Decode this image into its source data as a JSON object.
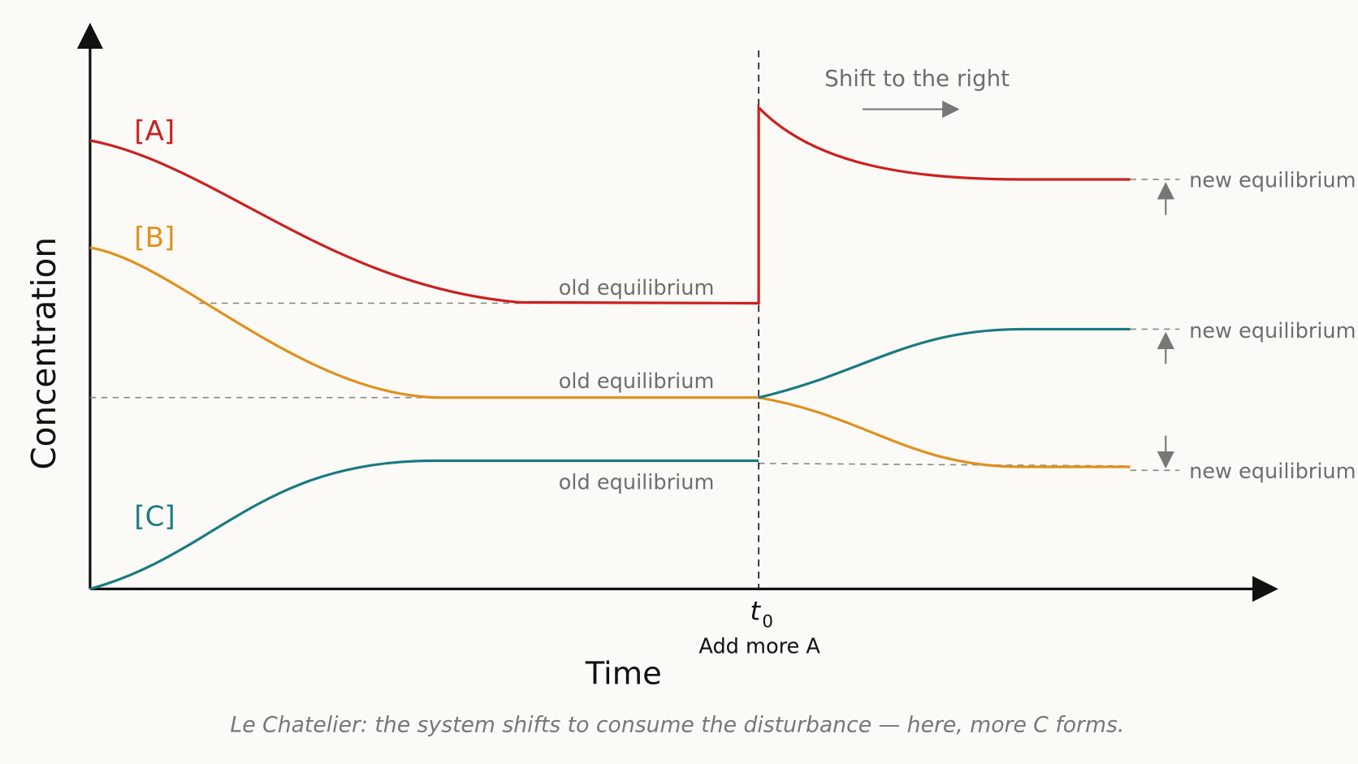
{
  "y_axis_label": "Concentration",
  "x_axis_label": "Time",
  "species": {
    "a": "[A]",
    "b": "[B]",
    "c": "[C]"
  },
  "old_equilibrium_labels": [
    "old equilibrium",
    "old equilibrium",
    "old equilibrium"
  ],
  "new_equilibrium_labels": [
    "new equilibrium",
    "new equilibrium",
    "new equilibrium"
  ],
  "shift_label": "Shift to the right",
  "time_marker": {
    "symbol": "t",
    "subscript": "0",
    "label": "Add more A"
  },
  "caption": "Le Chatelier: the system shifts to consume the disturbance — here, more C forms."
}
